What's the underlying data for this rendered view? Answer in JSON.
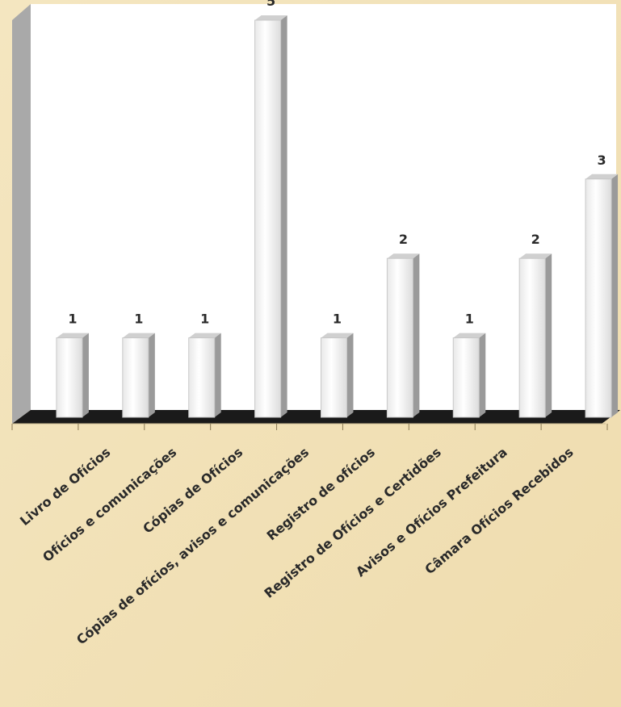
{
  "chart_data": {
    "type": "bar",
    "categories": [
      null,
      "Livro de Ofícios",
      "Ofícios e comunicações",
      "Cópias de Ofícios",
      "Cópias de ofícios, avisos e comunicações",
      "Registro de ofícios",
      "Registro de Ofícios e Certidões",
      "Avisos e Ofícios  Prefeitura",
      "Câmara Ofícios Recebidos"
    ],
    "values": [
      1,
      1,
      1,
      5,
      1,
      2,
      1,
      2,
      3
    ],
    "color": "#ffffff",
    "ylim": [
      0,
      5
    ]
  }
}
